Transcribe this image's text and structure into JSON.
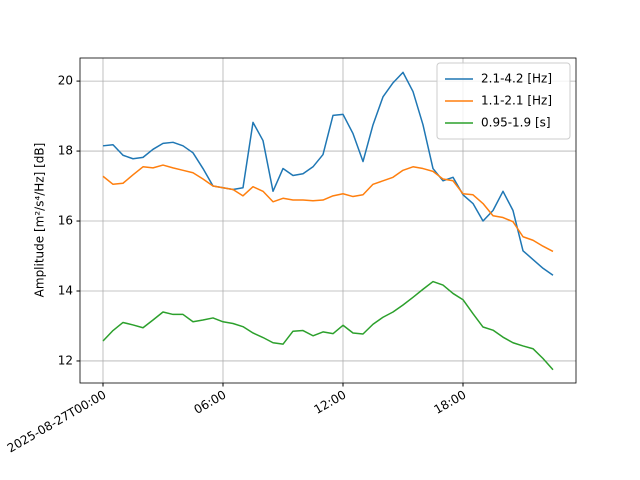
{
  "chart_data": {
    "type": "line",
    "y_label": "Amplitude [m²/s⁴/Hz] [dB]",
    "x": [
      0,
      0.5,
      1,
      1.5,
      2,
      2.5,
      3,
      3.5,
      4,
      4.5,
      5,
      5.5,
      6,
      6.5,
      7,
      7.5,
      8,
      8.5,
      9,
      9.5,
      10,
      10.5,
      11,
      11.5,
      12,
      12.5,
      13,
      13.5,
      14,
      14.5,
      15,
      15.5,
      16,
      16.5,
      17,
      17.5,
      18,
      18.5,
      19,
      19.5,
      20,
      20.5,
      21,
      21.5,
      22,
      22.5
    ],
    "series": [
      {
        "name": "2.1-4.2 [Hz]",
        "color": "#1f77b4",
        "values": [
          18.15,
          18.18,
          17.88,
          17.78,
          17.82,
          18.05,
          18.22,
          18.25,
          18.15,
          17.95,
          17.5,
          17.0,
          16.95,
          16.9,
          16.95,
          18.82,
          18.3,
          16.85,
          17.5,
          17.3,
          17.35,
          17.55,
          17.9,
          19.02,
          19.05,
          18.5,
          17.7,
          18.75,
          19.55,
          19.95,
          20.25,
          19.7,
          18.75,
          17.5,
          17.15,
          17.25,
          16.75,
          16.5,
          16.0,
          16.3,
          16.85,
          16.3,
          15.15,
          14.9,
          14.65,
          14.45
        ]
      },
      {
        "name": "1.1-2.1 [Hz]",
        "color": "#ff7f0e",
        "values": [
          17.28,
          17.05,
          17.08,
          17.32,
          17.55,
          17.52,
          17.6,
          17.52,
          17.45,
          17.38,
          17.2,
          17.0,
          16.95,
          16.9,
          16.72,
          16.98,
          16.85,
          16.55,
          16.65,
          16.6,
          16.6,
          16.58,
          16.6,
          16.72,
          16.78,
          16.7,
          16.75,
          17.05,
          17.15,
          17.25,
          17.45,
          17.55,
          17.5,
          17.42,
          17.2,
          17.15,
          16.78,
          16.75,
          16.5,
          16.15,
          16.1,
          15.98,
          15.55,
          15.45,
          15.28,
          15.13
        ]
      },
      {
        "name": "0.95-1.9 [s]",
        "color": "#2ca02c",
        "values": [
          12.57,
          12.87,
          13.1,
          13.03,
          12.95,
          13.17,
          13.4,
          13.33,
          13.33,
          13.12,
          13.17,
          13.23,
          13.12,
          13.07,
          12.98,
          12.8,
          12.67,
          12.52,
          12.48,
          12.85,
          12.87,
          12.72,
          12.83,
          12.78,
          13.02,
          12.8,
          12.77,
          13.05,
          13.25,
          13.4,
          13.6,
          13.82,
          14.05,
          14.27,
          14.17,
          13.93,
          13.75,
          13.35,
          12.97,
          12.88,
          12.68,
          12.52,
          12.43,
          12.35,
          12.07,
          11.75
        ]
      }
    ],
    "xlim": [
      -1.15,
      23.65
    ],
    "xticks": [
      {
        "value": 0,
        "label": "2025-08-27T00:00"
      },
      {
        "value": 6,
        "label": "06:00"
      },
      {
        "value": 12,
        "label": "12:00"
      },
      {
        "value": 18,
        "label": "18:00"
      }
    ],
    "ylim": [
      11.37,
      20.66
    ],
    "yticks": [
      12,
      14,
      16,
      18,
      20
    ],
    "grid": true,
    "legend": "upper-right"
  }
}
